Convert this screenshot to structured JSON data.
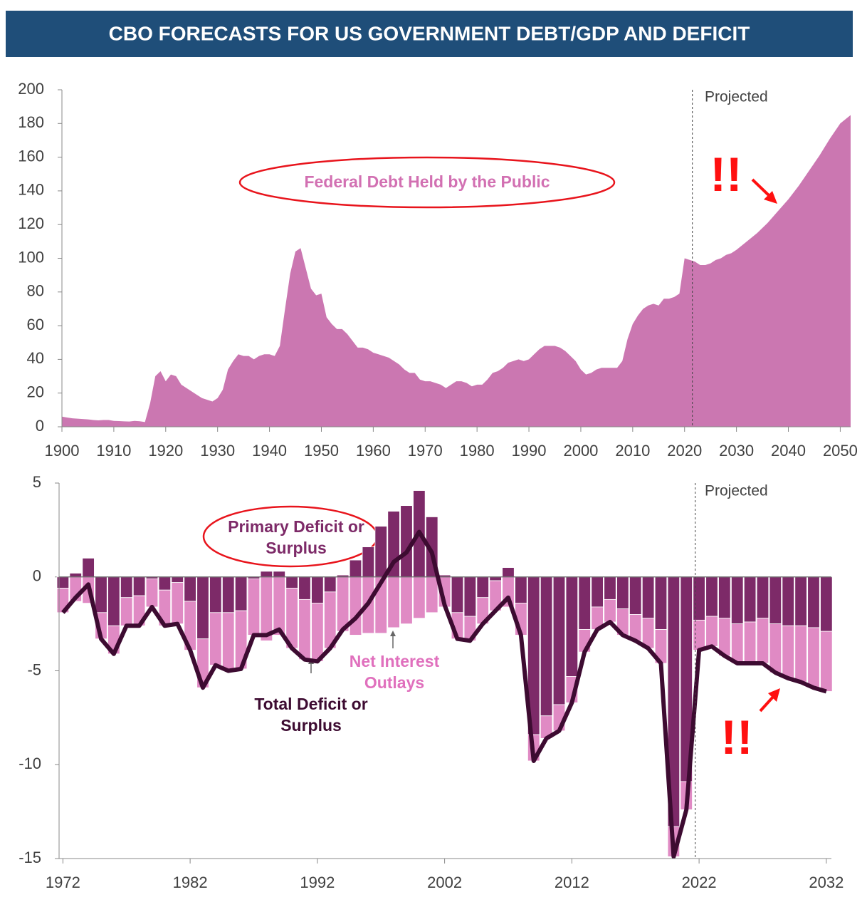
{
  "title": "CBO FORECASTS FOR US GOVERNMENT DEBT/GDP AND DEFICIT",
  "chart_data": [
    {
      "type": "area",
      "series": [
        {
          "name": "Federal Debt Held by the Public",
          "color": "#cb77b1",
          "values": [
            6,
            5.5,
            5,
            4.8,
            4.6,
            4.4,
            4,
            3.8,
            4,
            4,
            3.5,
            3.4,
            3.2,
            3.1,
            3.5,
            3.3,
            2.8,
            14,
            30,
            33,
            27,
            31,
            30,
            25,
            23,
            21,
            19,
            17,
            16,
            15,
            17,
            22,
            34,
            39,
            43,
            42,
            42,
            40,
            42,
            43,
            43,
            42,
            48,
            70,
            91,
            104,
            106,
            94,
            82,
            78,
            79,
            65,
            61,
            58,
            58,
            55,
            51,
            47,
            47,
            46,
            44,
            43,
            42,
            41,
            39,
            37,
            34,
            32,
            32,
            28,
            27,
            27,
            26,
            25,
            23,
            25,
            27,
            27,
            26,
            24,
            25,
            25,
            28,
            32,
            33,
            35,
            38,
            39,
            40,
            39,
            40,
            43,
            46,
            48,
            48,
            48,
            47,
            45,
            42,
            39,
            34,
            31,
            32,
            34,
            35,
            35,
            35,
            35,
            39,
            52,
            61,
            66,
            70,
            72,
            73,
            72,
            76,
            76,
            77,
            79,
            100,
            99,
            98,
            96,
            96,
            97,
            99,
            100,
            102,
            103,
            105,
            110,
            115,
            121,
            128,
            135,
            143,
            152,
            161,
            171,
            180,
            185
          ]
        }
      ],
      "x": [
        1900,
        1901,
        1902,
        1903,
        1904,
        1905,
        1906,
        1907,
        1908,
        1909,
        1910,
        1911,
        1912,
        1913,
        1914,
        1915,
        1916,
        1917,
        1918,
        1919,
        1920,
        1921,
        1922,
        1923,
        1924,
        1925,
        1926,
        1927,
        1928,
        1929,
        1930,
        1931,
        1932,
        1933,
        1934,
        1935,
        1936,
        1937,
        1938,
        1939,
        1940,
        1941,
        1942,
        1943,
        1944,
        1945,
        1946,
        1947,
        1948,
        1949,
        1950,
        1951,
        1952,
        1953,
        1954,
        1955,
        1956,
        1957,
        1958,
        1959,
        1960,
        1961,
        1962,
        1963,
        1964,
        1965,
        1966,
        1967,
        1968,
        1969,
        1970,
        1971,
        1972,
        1973,
        1974,
        1975,
        1976,
        1977,
        1978,
        1979,
        1980,
        1981,
        1982,
        1983,
        1984,
        1985,
        1986,
        1987,
        1988,
        1989,
        1990,
        1991,
        1992,
        1993,
        1994,
        1995,
        1996,
        1997,
        1998,
        1999,
        2000,
        2001,
        2002,
        2003,
        2004,
        2005,
        2006,
        2007,
        2008,
        2009,
        2010,
        2011,
        2012,
        2013,
        2014,
        2015,
        2016,
        2017,
        2018,
        2019,
        2020,
        2021,
        2022,
        2023,
        2024,
        2025,
        2026,
        2027,
        2028,
        2029,
        2030,
        2032,
        2034,
        2036,
        2038,
        2040,
        2042,
        2044,
        2046,
        2048,
        2050,
        2052
      ],
      "xlim": [
        1900,
        2052
      ],
      "ylim": [
        0,
        200
      ],
      "xticks": [
        1900,
        1910,
        1920,
        1930,
        1940,
        1950,
        1960,
        1970,
        1980,
        1990,
        2000,
        2010,
        2020,
        2030,
        2040,
        2050
      ],
      "yticks": [
        0,
        20,
        40,
        60,
        80,
        100,
        120,
        140,
        160,
        180,
        200
      ],
      "projected_from": 2021.5,
      "annotations": {
        "projected": "Projected",
        "alert": "!!"
      }
    },
    {
      "type": "bar",
      "stacked": true,
      "x": [
        1972,
        1973,
        1974,
        1975,
        1976,
        1977,
        1978,
        1979,
        1980,
        1981,
        1982,
        1983,
        1984,
        1985,
        1986,
        1987,
        1988,
        1989,
        1990,
        1991,
        1992,
        1993,
        1994,
        1995,
        1996,
        1997,
        1998,
        1999,
        2000,
        2001,
        2002,
        2003,
        2004,
        2005,
        2006,
        2007,
        2008,
        2009,
        2010,
        2011,
        2012,
        2013,
        2014,
        2015,
        2016,
        2017,
        2018,
        2019,
        2020,
        2021,
        2022,
        2023,
        2024,
        2025,
        2026,
        2027,
        2028,
        2029,
        2030,
        2031,
        2032
      ],
      "series": [
        {
          "name": "Primary Deficit or Surplus",
          "color": "#7d2a68",
          "kind": "bar",
          "values": [
            -0.6,
            0.2,
            1.0,
            -1.9,
            -2.6,
            -1.1,
            -1.0,
            -0.1,
            -0.7,
            -0.3,
            -1.3,
            -3.3,
            -1.9,
            -1.9,
            -1.8,
            -0.1,
            0.3,
            0.3,
            -0.6,
            -1.2,
            -1.4,
            -0.8,
            0.1,
            0.9,
            1.6,
            2.7,
            3.5,
            3.8,
            4.6,
            3.2,
            0.1,
            -1.9,
            -2.1,
            -1.1,
            -0.2,
            0.5,
            -1.4,
            -8.4,
            -7.4,
            -6.8,
            -5.3,
            -2.8,
            -1.6,
            -1.2,
            -1.7,
            -2.0,
            -2.2,
            -2.8,
            -13.3,
            -10.9,
            -2.3,
            -2.1,
            -2.2,
            -2.5,
            -2.4,
            -2.2,
            -2.5,
            -2.6,
            -2.6,
            -2.7,
            -2.9
          ]
        },
        {
          "name": "Net Interest Outlays",
          "color": "#e08ac4",
          "kind": "bar",
          "values": [
            -1.3,
            -1.3,
            -1.4,
            -1.4,
            -1.5,
            -1.5,
            -1.6,
            -1.5,
            -1.9,
            -2.2,
            -2.6,
            -2.6,
            -2.8,
            -3.1,
            -3.1,
            -3.0,
            -3.4,
            -3.1,
            -3.2,
            -3.2,
            -3.1,
            -3.0,
            -2.9,
            -3.1,
            -3.0,
            -3.0,
            -2.7,
            -2.5,
            -2.2,
            -1.9,
            -1.6,
            -1.4,
            -1.3,
            -1.4,
            -1.6,
            -1.6,
            -1.7,
            -1.4,
            -1.2,
            -1.4,
            -1.4,
            -1.2,
            -1.2,
            -1.2,
            -1.4,
            -1.4,
            -1.6,
            -1.8,
            -1.6,
            -1.5,
            -1.6,
            -1.6,
            -2.0,
            -2.1,
            -2.2,
            -2.4,
            -2.6,
            -2.8,
            -3.0,
            -3.2,
            -3.2
          ]
        },
        {
          "name": "Total Deficit or Surplus",
          "color": "#3d0b31",
          "kind": "line",
          "values": [
            -1.9,
            -1.1,
            -0.4,
            -3.3,
            -4.1,
            -2.6,
            -2.6,
            -1.6,
            -2.6,
            -2.5,
            -3.9,
            -5.9,
            -4.7,
            -5.0,
            -4.9,
            -3.1,
            -3.1,
            -2.8,
            -3.8,
            -4.4,
            -4.5,
            -3.8,
            -2.8,
            -2.2,
            -1.4,
            -0.3,
            0.8,
            1.3,
            2.4,
            1.3,
            -1.5,
            -3.3,
            -3.4,
            -2.5,
            -1.8,
            -1.1,
            -3.1,
            -9.8,
            -8.6,
            -8.2,
            -6.7,
            -4.0,
            -2.8,
            -2.4,
            -3.1,
            -3.4,
            -3.8,
            -4.6,
            -14.9,
            -12.4,
            -3.9,
            -3.7,
            -4.2,
            -4.6,
            -4.6,
            -4.6,
            -5.1,
            -5.4,
            -5.6,
            -5.9,
            -6.1
          ]
        }
      ],
      "xlim": [
        1971.7,
        2032.4
      ],
      "ylim": [
        -15,
        5
      ],
      "xticks": [
        1972,
        1982,
        1992,
        2002,
        2012,
        2022,
        2032
      ],
      "yticks": [
        5,
        0,
        -5,
        -10,
        -15
      ],
      "projected_from": 2021.7,
      "annotations": {
        "projected": "Projected",
        "alert": "!!"
      }
    }
  ]
}
